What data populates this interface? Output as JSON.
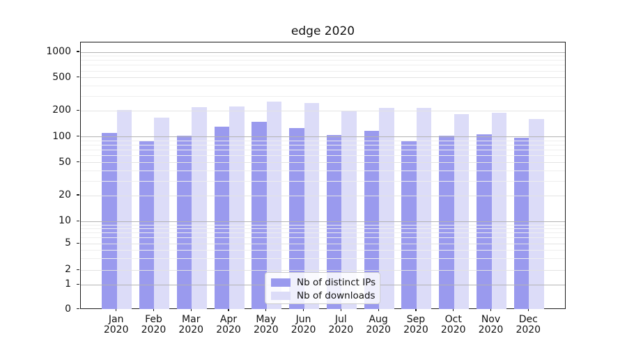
{
  "chart_data": {
    "type": "bar",
    "title": "edge 2020",
    "categories": [
      "Jan 2020",
      "Feb 2020",
      "Mar 2020",
      "Apr 2020",
      "May 2020",
      "Jun 2020",
      "Jul 2020",
      "Aug 2020",
      "Sep 2020",
      "Oct 2020",
      "Nov 2020",
      "Dec 2020"
    ],
    "series": [
      {
        "name": "Nb of distinct IPs",
        "color": "#9a9aee",
        "values": [
          112,
          91,
          103,
          132,
          150,
          126,
          105,
          118,
          91,
          104,
          108,
          97
        ]
      },
      {
        "name": "Nb of downloads",
        "color": "#dcdcf8",
        "values": [
          205,
          167,
          223,
          225,
          260,
          248,
          199,
          216,
          219,
          183,
          189,
          162
        ]
      }
    ],
    "xlabel": "",
    "ylabel": "",
    "yaxis": {
      "scale": "symlog",
      "tick_labels": [
        "1000",
        "500",
        "200",
        "100",
        "50",
        "20",
        "10",
        "5",
        "2",
        "1",
        "0"
      ],
      "tick_values": [
        1000,
        500,
        200,
        100,
        50,
        20,
        10,
        5,
        2,
        1,
        0
      ],
      "ylim": [
        0,
        1300
      ]
    },
    "grid": "on",
    "legend_position": "lower center"
  },
  "colors": {
    "bar_distinct_ips": "#9a9aee",
    "bar_downloads": "#dcdcf8",
    "grid_major": "#b3b3b3",
    "grid_sub": "#e3e3e3",
    "grid_minor": "#eeeeee",
    "spine": "#1a1a1a"
  }
}
